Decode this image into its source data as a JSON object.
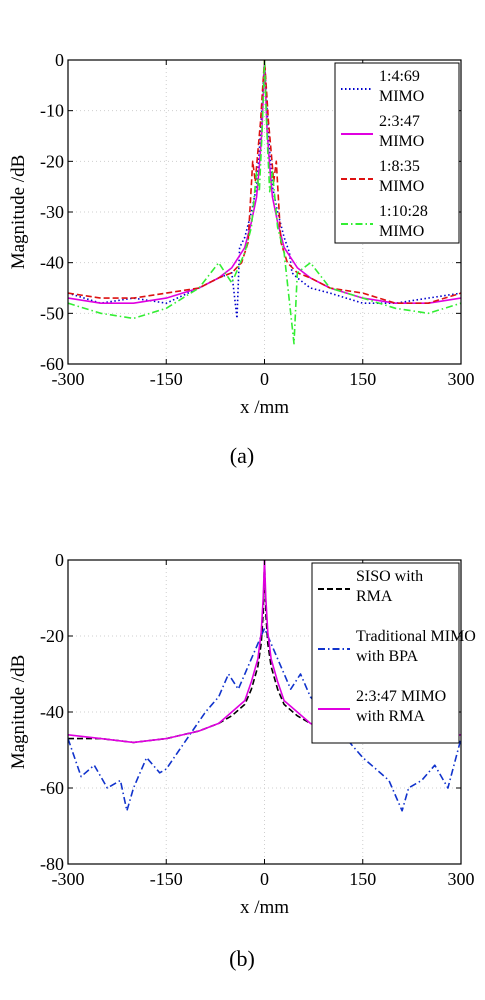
{
  "chart_data": [
    {
      "type": "line",
      "caption": "(a)",
      "xlabel": "x /mm",
      "ylabel": "Magnitude /dB",
      "xlim": [
        -300,
        300
      ],
      "ylim": [
        -60,
        0
      ],
      "xticks": [
        -300,
        -150,
        0,
        150,
        300
      ],
      "yticks": [
        0,
        -10,
        -20,
        -30,
        -40,
        -50,
        -60
      ],
      "grid": true,
      "legend_position": "top-right",
      "series": [
        {
          "name": "1:4:69 MIMO",
          "color": "#0000cc",
          "style": "dotted",
          "x": [
            -300,
            -250,
            -200,
            -150,
            -100,
            -70,
            -50,
            -42,
            -38,
            -30,
            -20,
            -12,
            -8,
            -4,
            -2,
            0,
            2,
            4,
            8,
            12,
            20,
            30,
            38,
            42,
            50,
            70,
            100,
            150,
            200,
            250,
            300
          ],
          "y": [
            -46,
            -48,
            -47,
            -48,
            -45,
            -43,
            -42,
            -51,
            -37,
            -35,
            -30,
            -25,
            -18,
            -10,
            -5,
            0,
            -5,
            -10,
            -18,
            -25,
            -30,
            -35,
            -38,
            -42,
            -43,
            -45,
            -46,
            -48,
            -48,
            -47,
            -46
          ]
        },
        {
          "name": "2:3:47 MIMO",
          "color": "#e000e0",
          "style": "solid",
          "x": [
            -300,
            -250,
            -200,
            -150,
            -100,
            -70,
            -50,
            -30,
            -20,
            -12,
            -8,
            -4,
            -2,
            0,
            2,
            4,
            8,
            12,
            20,
            30,
            50,
            70,
            100,
            150,
            200,
            250,
            300
          ],
          "y": [
            -47,
            -48,
            -48,
            -47,
            -45,
            -43,
            -41,
            -37,
            -32,
            -27,
            -21,
            -14,
            -7,
            0,
            -7,
            -14,
            -21,
            -27,
            -32,
            -37,
            -41,
            -43,
            -45,
            -47,
            -48,
            -48,
            -47
          ]
        },
        {
          "name": "1:8:35 MIMO",
          "color": "#dd1111",
          "style": "dashed",
          "x": [
            -300,
            -250,
            -200,
            -150,
            -100,
            -70,
            -50,
            -35,
            -25,
            -18,
            -14,
            -10,
            -6,
            -3,
            0,
            3,
            6,
            10,
            14,
            18,
            25,
            35,
            50,
            70,
            100,
            150,
            200,
            250,
            300
          ],
          "y": [
            -46,
            -47,
            -47,
            -46,
            -45,
            -43,
            -42,
            -40,
            -36,
            -20,
            -24,
            -18,
            -12,
            -6,
            0,
            -6,
            -12,
            -18,
            -24,
            -20,
            -36,
            -40,
            -42,
            -43,
            -45,
            -46,
            -48,
            -48,
            -46
          ]
        },
        {
          "name": "1:10:28 MIMO",
          "color": "#33ee33",
          "style": "dashdot",
          "x": [
            -300,
            -250,
            -200,
            -150,
            -100,
            -70,
            -50,
            -30,
            -20,
            -12,
            -8,
            -4,
            -2,
            0,
            2,
            4,
            8,
            12,
            20,
            30,
            45,
            50,
            70,
            100,
            150,
            200,
            250,
            300
          ],
          "y": [
            -48,
            -50,
            -51,
            -49,
            -45,
            -40,
            -44,
            -38,
            -33,
            -22,
            -26,
            -15,
            -8,
            0,
            -8,
            -15,
            -26,
            -22,
            -33,
            -38,
            -56,
            -42,
            -40,
            -45,
            -47,
            -49,
            -50,
            -48
          ]
        }
      ]
    },
    {
      "type": "line",
      "caption": "(b)",
      "xlabel": "x /mm",
      "ylabel": "Magnitude /dB",
      "xlim": [
        -300,
        300
      ],
      "ylim": [
        -80,
        0
      ],
      "xticks": [
        -300,
        -150,
        0,
        150,
        300
      ],
      "yticks": [
        0,
        -20,
        -40,
        -60,
        -80
      ],
      "grid": true,
      "legend_position": "top-right",
      "series": [
        {
          "name": "SISO with RMA",
          "color": "#000000",
          "style": "dashed",
          "x": [
            -300,
            -250,
            -200,
            -150,
            -100,
            -70,
            -50,
            -30,
            -20,
            -10,
            -5,
            -2,
            0,
            2,
            5,
            10,
            20,
            30,
            50,
            70,
            100,
            150,
            200,
            250,
            300
          ],
          "y": [
            -47,
            -47,
            -48,
            -47,
            -45,
            -43,
            -41,
            -38,
            -34,
            -28,
            -22,
            -14,
            0,
            -14,
            -22,
            -28,
            -34,
            -38,
            -41,
            -43,
            -45,
            -47,
            -48,
            -47,
            -47
          ]
        },
        {
          "name": "Traditional MIMO with BPA",
          "color": "#1133cc",
          "style": "dashdot",
          "x": [
            -300,
            -280,
            -260,
            -240,
            -220,
            -210,
            -200,
            -180,
            -160,
            -150,
            -130,
            -110,
            -90,
            -70,
            -55,
            -40,
            -25,
            -10,
            0,
            10,
            25,
            40,
            55,
            70,
            90,
            110,
            130,
            150,
            170,
            190,
            210,
            220,
            240,
            260,
            280,
            300
          ],
          "y": [
            -47,
            -57,
            -54,
            -60,
            -58,
            -66,
            -60,
            -52,
            -56,
            -55,
            -50,
            -45,
            -40,
            -36,
            -30,
            -34,
            -28,
            -22,
            -18,
            -22,
            -28,
            -34,
            -30,
            -36,
            -40,
            -45,
            -48,
            -52,
            -55,
            -58,
            -66,
            -60,
            -58,
            -54,
            -60,
            -47
          ]
        },
        {
          "name": "2:3:47 MIMO with RMA",
          "color": "#e000e0",
          "style": "solid",
          "x": [
            -300,
            -250,
            -200,
            -150,
            -100,
            -70,
            -50,
            -30,
            -20,
            -10,
            -5,
            -2,
            0,
            2,
            5,
            10,
            20,
            30,
            50,
            70,
            100,
            150,
            200,
            250,
            300
          ],
          "y": [
            -46,
            -47,
            -48,
            -47,
            -45,
            -43,
            -40,
            -37,
            -32,
            -26,
            -19,
            -10,
            0,
            -10,
            -19,
            -26,
            -32,
            -37,
            -40,
            -43,
            -45,
            -47,
            -48,
            -47,
            -46
          ]
        }
      ]
    }
  ]
}
